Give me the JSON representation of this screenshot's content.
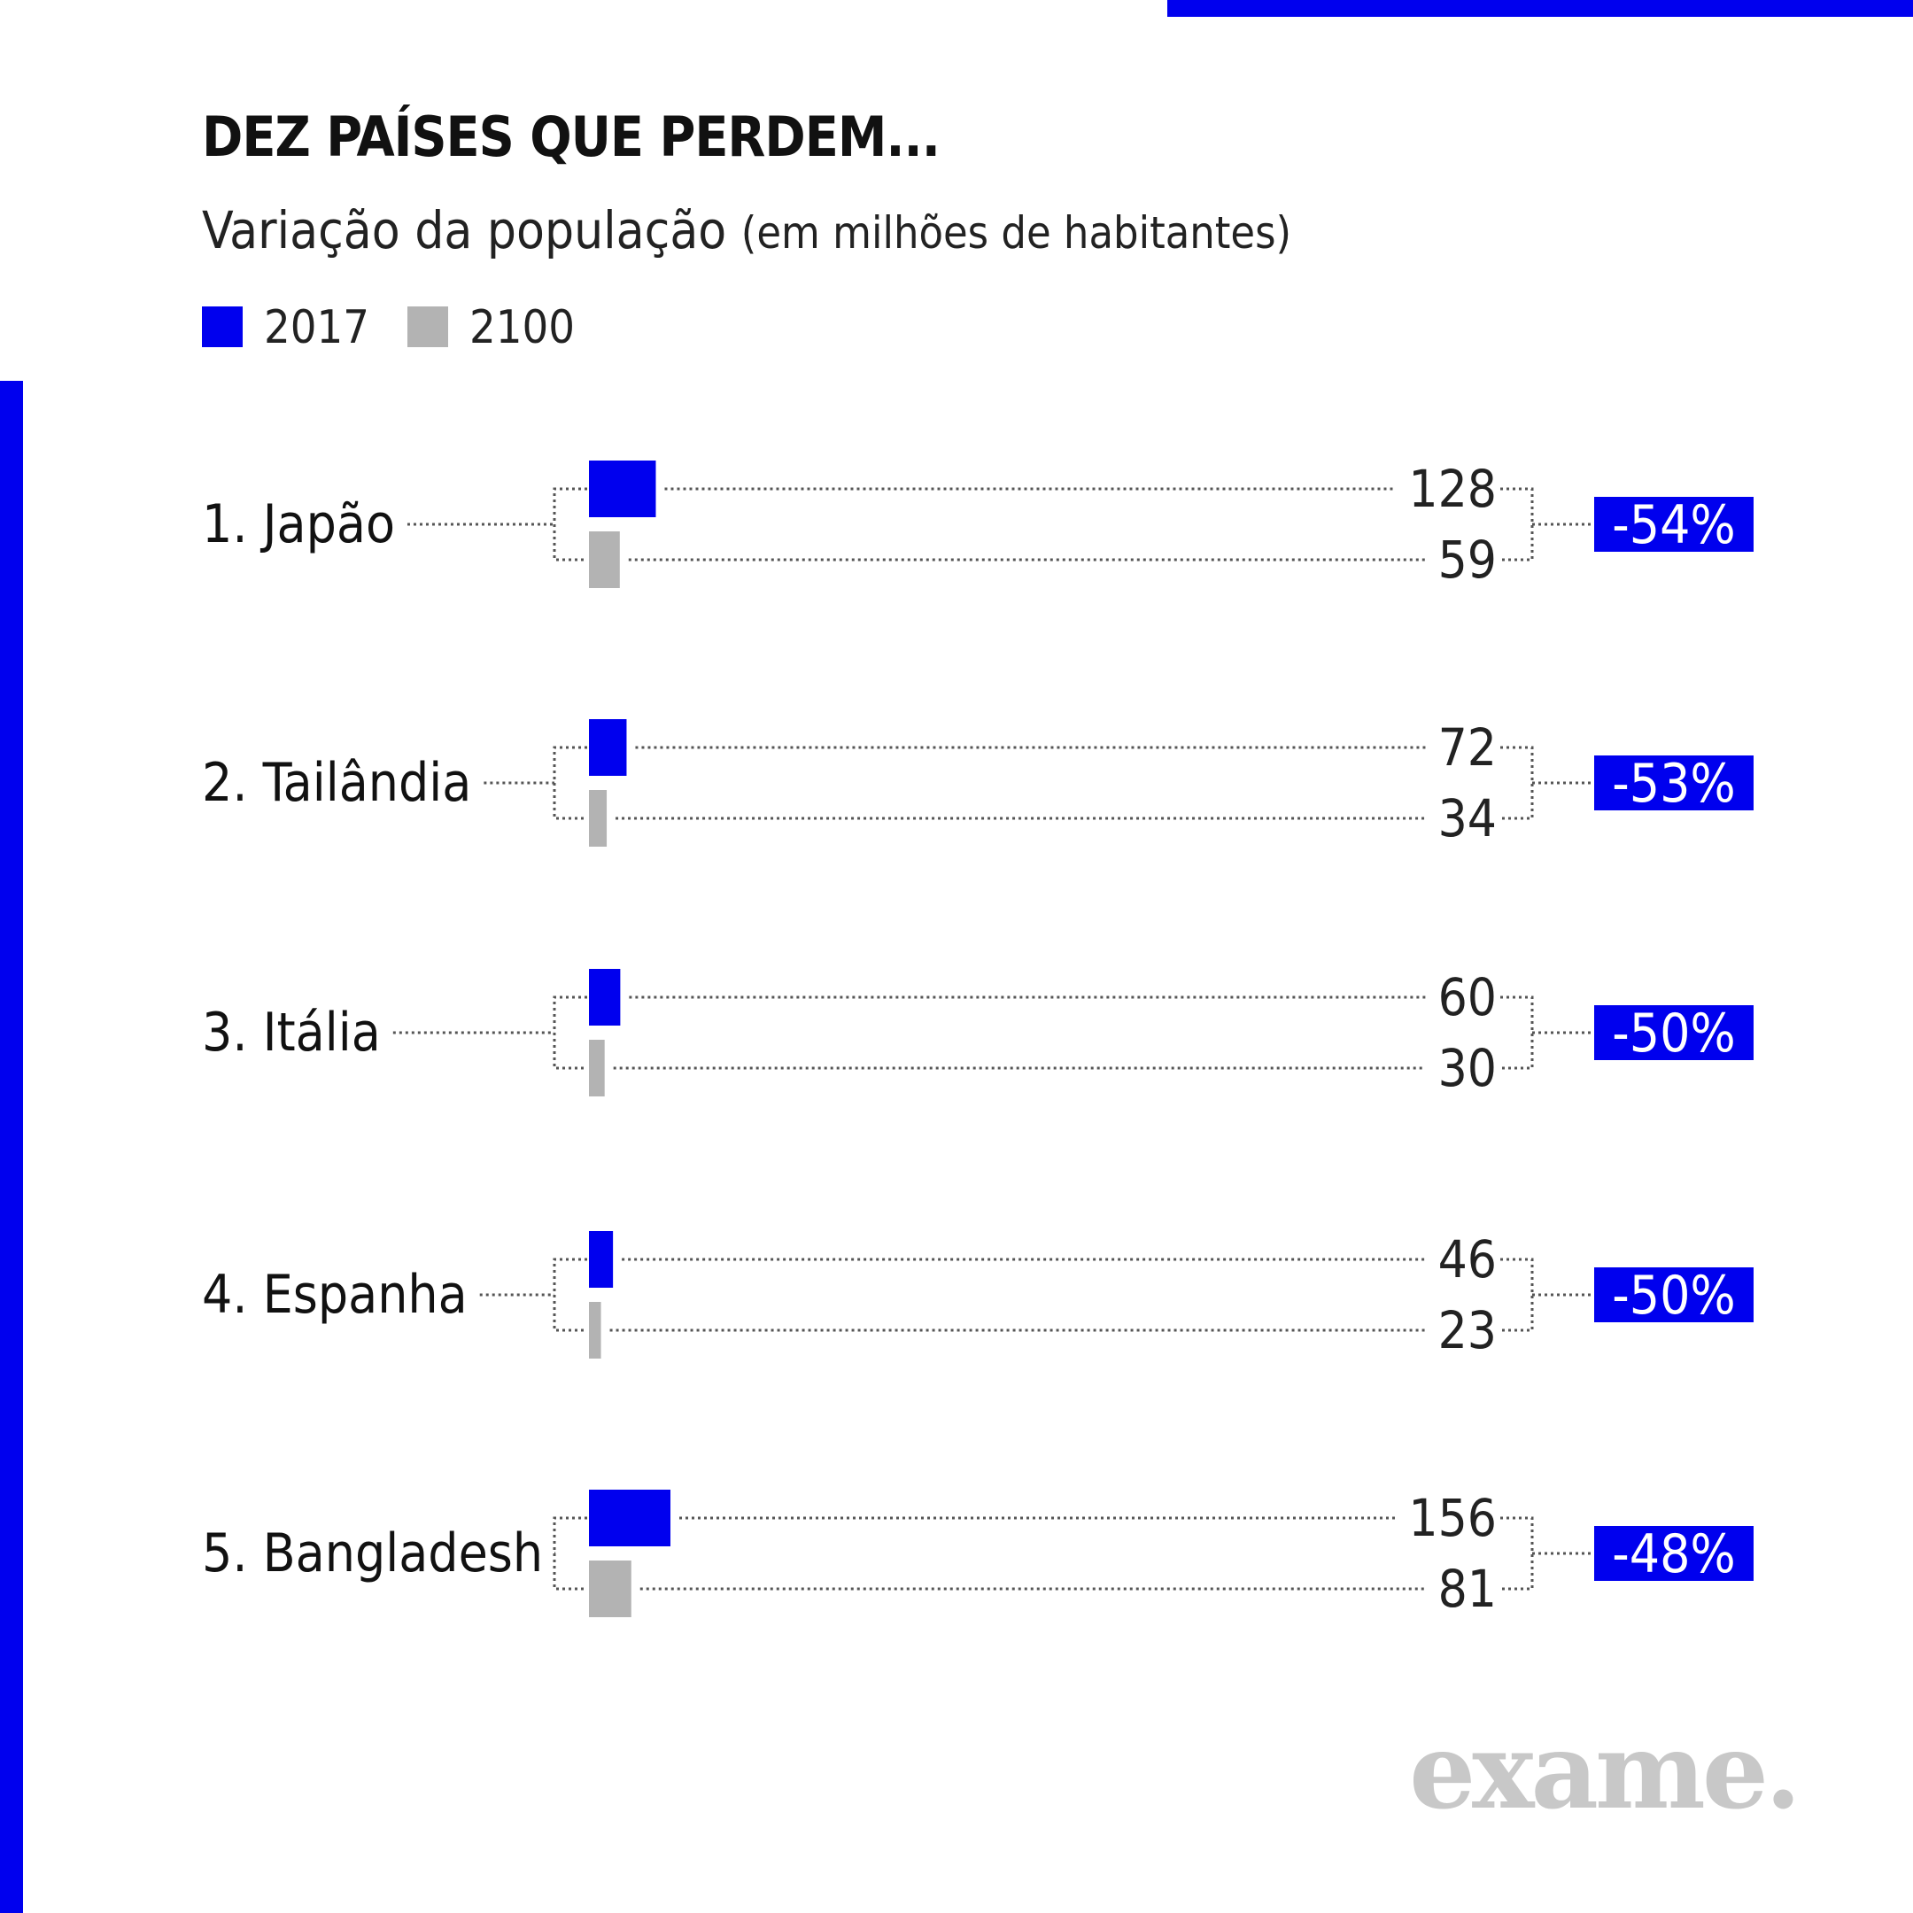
{
  "title": "DEZ PAÍSES QUE PERDEM...",
  "subtitle": "Variação da população",
  "subtitle_unit": "(em milhões de habitantes)",
  "logo_text": "exame.",
  "colors": {
    "accent": "#0000ee",
    "series_2017": "#0000ee",
    "series_2100": "#b3b3b3"
  },
  "legend": [
    {
      "label": "2017",
      "color": "#0000ee"
    },
    {
      "label": "2100",
      "color": "#b3b3b3"
    }
  ],
  "chart_data": {
    "type": "bar",
    "orientation": "horizontal",
    "categories": [
      "1. Japão",
      "2. Tailândia",
      "3. Itália",
      "4. Espanha",
      "5. Bangladesh"
    ],
    "series": [
      {
        "name": "2017",
        "color": "#0000ee",
        "values": [
          128,
          72,
          60,
          46,
          156
        ],
        "value_labels": [
          "128",
          "72",
          "60",
          "46",
          "156"
        ]
      },
      {
        "name": "2100",
        "color": "#b3b3b3",
        "values": [
          59,
          34,
          30,
          23,
          81
        ],
        "value_labels": [
          "59",
          "34",
          "30",
          "23",
          "81"
        ]
      }
    ],
    "change_labels": [
      "-54%",
      "-53%",
      "-50%",
      "-50%",
      "-48%"
    ],
    "title": "DEZ PAÍSES QUE PERDEM...",
    "subtitle": "Variação da população (em milhões de habitantes)",
    "legend": "top-left",
    "grid": false
  }
}
